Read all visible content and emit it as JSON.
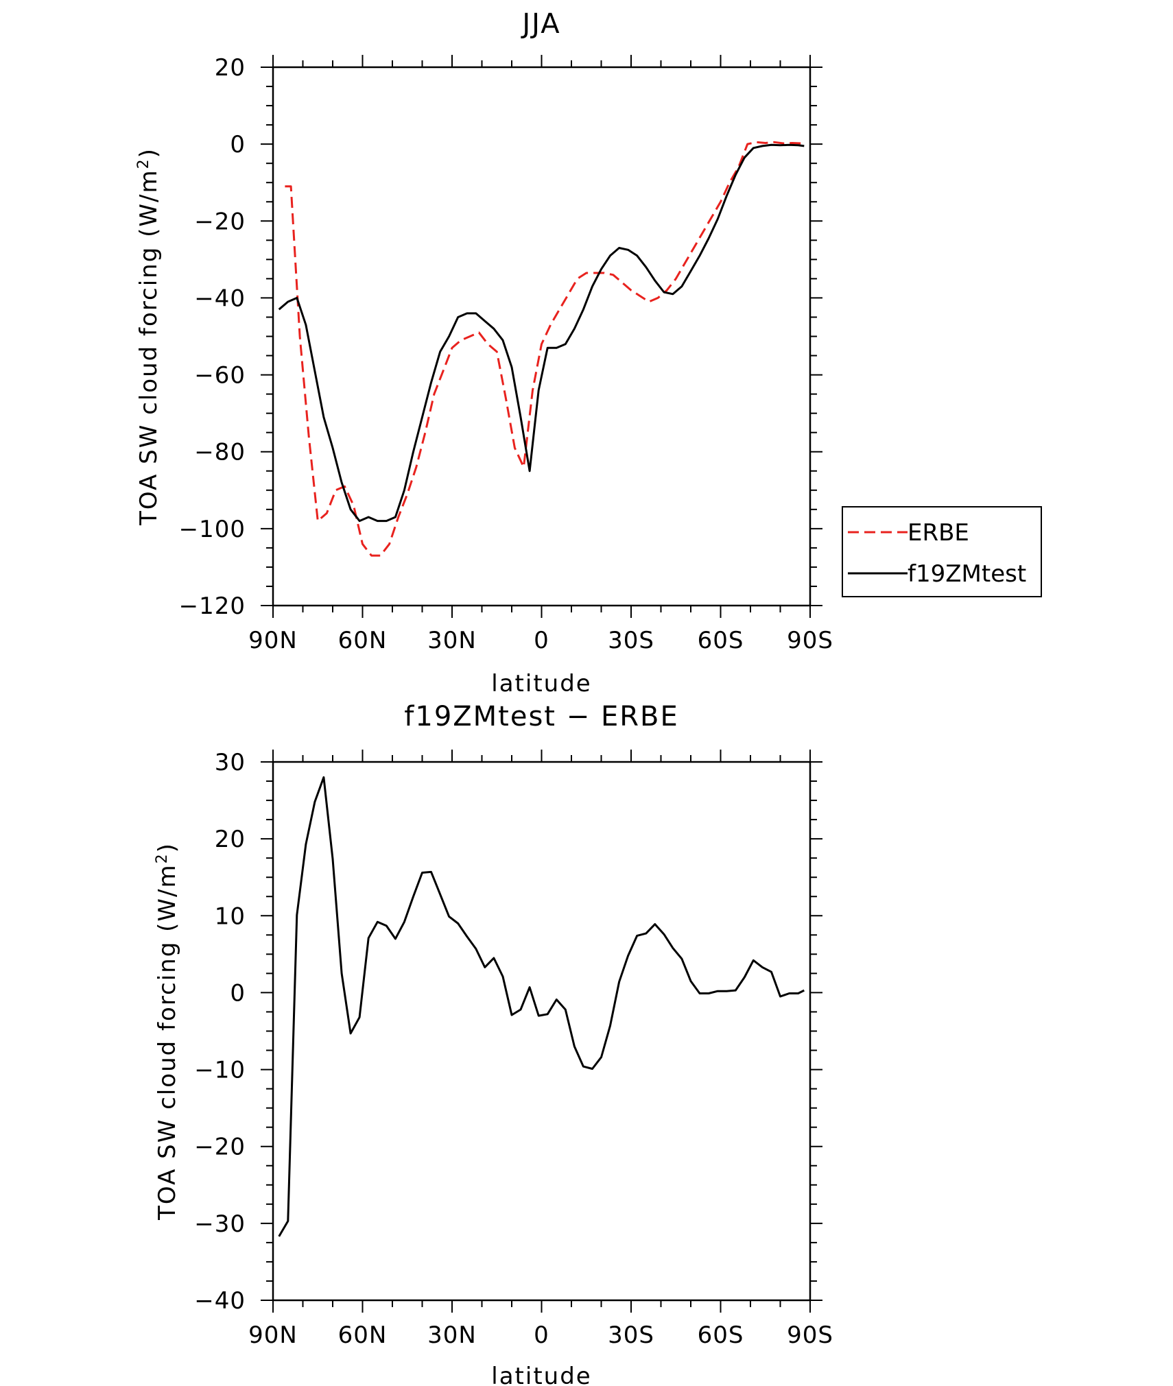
{
  "chart_data": [
    {
      "type": "line",
      "title": "JJA",
      "xlabel": "latitude",
      "ylabel": "TOA SW cloud forcing (W/m²)",
      "ylabel_main": "TOA SW cloud forcing (W/m",
      "ylabel_sup": "2",
      "ylabel_close": ")",
      "xlim": [
        90,
        -90
      ],
      "ylim": [
        -120,
        20
      ],
      "xticks": [
        90,
        60,
        30,
        0,
        -30,
        -60,
        -90
      ],
      "xtick_labels": [
        "90N",
        "60N",
        "30N",
        "0",
        "30S",
        "60S",
        "90S"
      ],
      "yticks": [
        -120,
        -100,
        -80,
        -60,
        -40,
        -20,
        0,
        20
      ],
      "ytick_labels": [
        "−120",
        "−100",
        "−80",
        "−60",
        "−40",
        "−20",
        "0",
        "20"
      ],
      "legend_position": "right",
      "series": [
        {
          "name": "ERBE",
          "color": "#e8221e",
          "dash": "dashed",
          "x": [
            86,
            84,
            81,
            78,
            75,
            72,
            69,
            66,
            63,
            60,
            57,
            54,
            51,
            48,
            45,
            42,
            39,
            36,
            33,
            30,
            27,
            24,
            21,
            18,
            15,
            12,
            9,
            6,
            3,
            0,
            -3,
            -6,
            -9,
            -12,
            -15,
            -18,
            -21,
            -24,
            -27,
            -30,
            -33,
            -36,
            -39,
            -42,
            -45,
            -48,
            -51,
            -54,
            -57,
            -60,
            -63,
            -66,
            -69,
            -72,
            -75,
            -78,
            -81,
            -84,
            -87,
            -88
          ],
          "y": [
            -11,
            -11,
            -50,
            -76,
            -98,
            -96,
            -90,
            -89,
            -94,
            -104,
            -107,
            -107,
            -104,
            -97,
            -91,
            -84,
            -75,
            -65,
            -59,
            -53,
            -51,
            -50,
            -49,
            -52,
            -54,
            -66,
            -79,
            -84,
            -64,
            -52,
            -47,
            -43,
            -39,
            -35,
            -33.5,
            -33.5,
            -33.5,
            -34,
            -36,
            -38,
            -39.5,
            -41,
            -40,
            -38,
            -35,
            -31,
            -27,
            -23,
            -19,
            -15,
            -10,
            -6,
            0,
            0.5,
            0.3,
            0.5,
            0.2,
            0.3,
            0.2,
            -0.3
          ]
        },
        {
          "name": "f19ZMtest",
          "color": "#000000",
          "dash": "solid",
          "x": [
            88,
            85,
            82,
            79,
            76,
            73,
            70,
            67,
            64,
            61,
            58,
            55,
            52,
            49,
            46,
            43,
            40,
            37,
            34,
            31,
            28,
            25,
            22,
            19,
            16,
            13,
            10,
            7,
            4,
            1,
            -2,
            -5,
            -8,
            -11,
            -14,
            -17,
            -20,
            -23,
            -26,
            -29,
            -32,
            -35,
            -38,
            -41,
            -44,
            -47,
            -50,
            -53,
            -56,
            -59,
            -62,
            -65,
            -68,
            -71,
            -74,
            -77,
            -80,
            -83,
            -86,
            -88
          ],
          "y": [
            -43,
            -41,
            -40,
            -47,
            -59,
            -71,
            -79,
            -88,
            -95,
            -98,
            -97,
            -98,
            -98,
            -97,
            -90,
            -80,
            -71,
            -62,
            -54,
            -50,
            -45,
            -44,
            -44,
            -46,
            -48,
            -51,
            -58,
            -71,
            -85,
            -64,
            -53,
            -53,
            -52,
            -48,
            -43,
            -37,
            -32.5,
            -29,
            -27,
            -27.5,
            -29,
            -32,
            -35.5,
            -38.5,
            -39,
            -37,
            -33,
            -29,
            -24.5,
            -19.5,
            -13.5,
            -8,
            -3.5,
            -1,
            -0.5,
            -0.2,
            -0.3,
            -0.2,
            -0.3,
            -0.5
          ]
        }
      ]
    },
    {
      "type": "line",
      "title": "f19ZMtest − ERBE",
      "xlabel": "latitude",
      "ylabel": "TOA SW cloud forcing (W/m²)",
      "ylabel_main": "TOA SW cloud forcing (W/m",
      "ylabel_sup": "2",
      "ylabel_close": ")",
      "xlim": [
        90,
        -90
      ],
      "ylim": [
        -40,
        30
      ],
      "xticks": [
        90,
        60,
        30,
        0,
        -30,
        -60,
        -90
      ],
      "xtick_labels": [
        "90N",
        "60N",
        "30N",
        "0",
        "30S",
        "60S",
        "90S"
      ],
      "yticks": [
        -40,
        -30,
        -20,
        -10,
        0,
        10,
        20,
        30
      ],
      "ytick_labels": [
        "−40",
        "−30",
        "−20",
        "−10",
        "0",
        "10",
        "20",
        "30"
      ],
      "series": [
        {
          "color": "#000000",
          "dash": "solid",
          "x": [
            88,
            85,
            82,
            79,
            76,
            73,
            70,
            67,
            64,
            61,
            58,
            55,
            52,
            49,
            46,
            43,
            40,
            37,
            34,
            31,
            28,
            25,
            22,
            19,
            16,
            13,
            10,
            7,
            4,
            1,
            -2,
            -5,
            -8,
            -11,
            -14,
            -17,
            -20,
            -23,
            -26,
            -29,
            -32,
            -35,
            -38,
            -41,
            -44,
            -47,
            -50,
            -53,
            -56,
            -59,
            -62,
            -65,
            -68,
            -71,
            -74,
            -77,
            -80,
            -83,
            -86,
            -88
          ],
          "y": [
            -31.7,
            -29.7,
            10.1,
            19.3,
            24.8,
            28.0,
            17.4,
            2.5,
            -5.3,
            -3.2,
            7.1,
            9.2,
            8.7,
            7.0,
            9.2,
            12.5,
            15.6,
            15.7,
            12.8,
            9.9,
            9.0,
            7.3,
            5.7,
            3.3,
            4.5,
            2.1,
            -2.9,
            -2.2,
            0.7,
            -3.0,
            -2.8,
            -0.9,
            -2.2,
            -7.0,
            -9.6,
            -9.9,
            -8.4,
            -4.3,
            1.4,
            4.8,
            7.4,
            7.7,
            8.9,
            7.6,
            5.8,
            4.4,
            1.5,
            -0.1,
            -0.1,
            0.2,
            0.2,
            0.3,
            2.0,
            4.2,
            3.3,
            2.7,
            -0.5,
            -0.1,
            -0.1,
            0.3
          ]
        }
      ]
    }
  ]
}
